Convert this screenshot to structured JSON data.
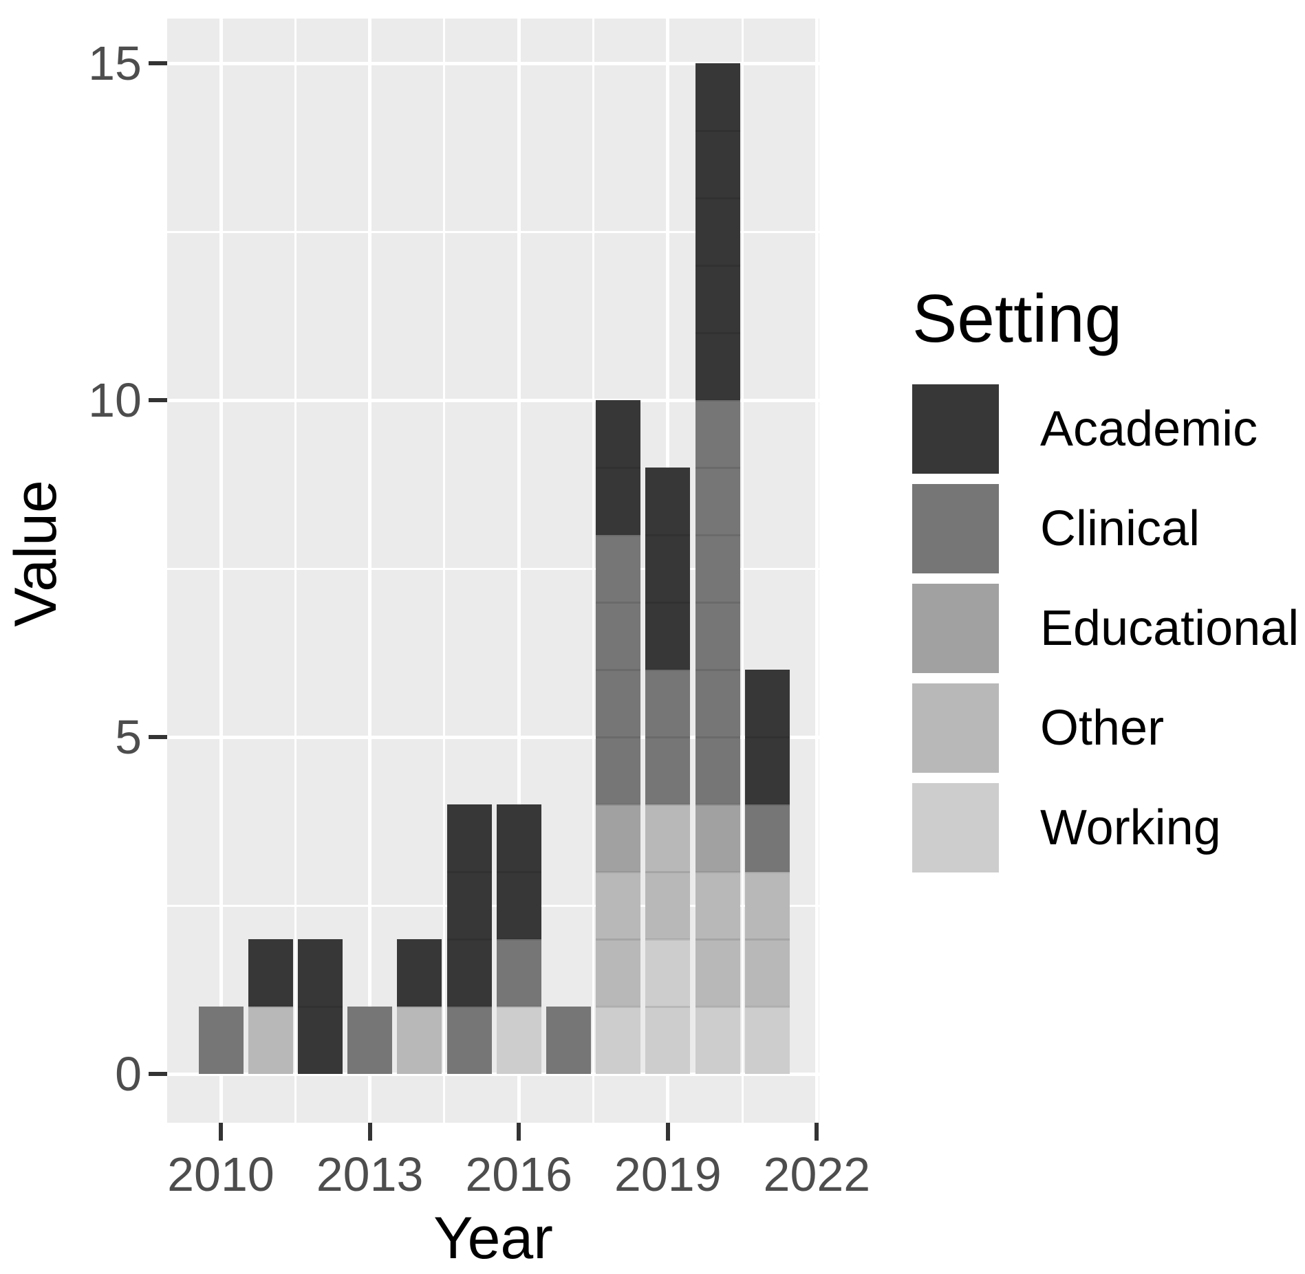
{
  "figure": {
    "xlabel": "Year",
    "ylabel": "Value"
  },
  "chart_data": {
    "type": "bar",
    "stacked": true,
    "title": "",
    "xlabel": "Year",
    "ylabel": "Value",
    "categories": [
      "2010",
      "2011",
      "2012",
      "2013",
      "2014",
      "2015",
      "2016",
      "2017",
      "2018",
      "2019",
      "2020",
      "2021"
    ],
    "series": [
      {
        "name": "Academic",
        "color": "#373737",
        "values": [
          0,
          1,
          2,
          0,
          1,
          3,
          2,
          0,
          2,
          3,
          5,
          2
        ]
      },
      {
        "name": "Clinical",
        "color": "#767676",
        "values": [
          1,
          0,
          0,
          1,
          0,
          1,
          1,
          1,
          4,
          2,
          6,
          1
        ]
      },
      {
        "name": "Educational",
        "color": "#a1a1a1",
        "values": [
          0,
          0,
          0,
          0,
          0,
          0,
          0,
          0,
          1,
          0,
          1,
          0
        ]
      },
      {
        "name": "Other",
        "color": "#b8b8b8",
        "values": [
          0,
          1,
          0,
          0,
          1,
          0,
          0,
          0,
          2,
          2,
          2,
          2
        ]
      },
      {
        "name": "Working",
        "color": "#cdcdcd",
        "values": [
          0,
          0,
          0,
          0,
          0,
          0,
          1,
          0,
          1,
          2,
          1,
          1
        ]
      }
    ],
    "stack_order_bottom_to_top": [
      "Working",
      "Other",
      "Educational",
      "Clinical",
      "Academic"
    ],
    "bar_totals": [
      1,
      2,
      2,
      1,
      2,
      4,
      4,
      1,
      10,
      9,
      15,
      6
    ],
    "x_ticks": {
      "labels": [
        "2010",
        "2013",
        "2016",
        "2019",
        "2022"
      ],
      "years": [
        2010,
        2013,
        2016,
        2019,
        2022
      ]
    },
    "x_minor_gridline_years": [
      2011.5,
      2014.5,
      2017.5,
      2020.5
    ],
    "y_ticks": {
      "labels": [
        "0",
        "5",
        "10",
        "15"
      ],
      "values": [
        0,
        5,
        10,
        15
      ]
    },
    "y_minor_gridline_values": [
      2.5,
      7.5,
      12.5
    ],
    "ylim": [
      0,
      15
    ],
    "grid": true,
    "legend": {
      "title": "Setting",
      "position": "right",
      "entries": [
        "Academic",
        "Clinical",
        "Educational",
        "Other",
        "Working"
      ]
    },
    "colors": {
      "panel_background": "#ebebeb",
      "gridline": "#ffffff",
      "tick_text": "#4d4d4d",
      "axis_title_text": "#000000",
      "tick_mark": "#333333",
      "figure_background": "#ffffff"
    }
  }
}
